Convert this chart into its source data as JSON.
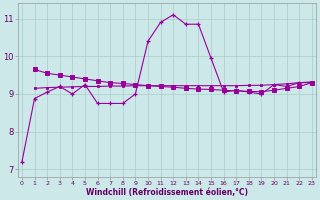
{
  "line1_x": [
    0,
    1,
    2,
    3,
    4,
    5,
    6,
    7,
    8,
    9,
    10,
    11,
    12,
    13,
    14,
    15,
    16,
    17,
    18,
    19,
    20,
    21,
    22,
    23
  ],
  "line1_y": [
    7.2,
    8.88,
    9.05,
    9.2,
    9.0,
    9.25,
    8.75,
    8.75,
    8.75,
    9.0,
    10.4,
    10.9,
    11.1,
    10.85,
    10.85,
    9.95,
    9.05,
    9.1,
    9.05,
    9.0,
    9.25,
    9.2,
    9.3,
    9.3
  ],
  "line2_x": [
    1,
    2,
    3,
    4,
    5,
    6,
    7,
    8,
    9,
    10,
    11,
    12,
    13,
    14,
    15,
    16,
    17,
    18,
    19,
    20,
    21,
    22,
    23
  ],
  "line2_y": [
    9.65,
    9.55,
    9.5,
    9.45,
    9.4,
    9.35,
    9.3,
    9.28,
    9.25,
    9.22,
    9.2,
    9.18,
    9.15,
    9.13,
    9.12,
    9.1,
    9.08,
    9.07,
    9.06,
    9.1,
    9.15,
    9.2,
    9.3
  ],
  "line3_x": [
    1,
    2,
    3,
    4,
    5,
    6,
    7,
    8,
    9,
    10,
    11,
    12,
    13,
    14,
    15,
    16,
    17,
    18,
    19,
    20,
    21,
    22,
    23
  ],
  "line3_y": [
    9.15,
    9.17,
    9.18,
    9.19,
    9.2,
    9.2,
    9.21,
    9.21,
    9.22,
    9.22,
    9.22,
    9.22,
    9.22,
    9.22,
    9.22,
    9.22,
    9.22,
    9.23,
    9.23,
    9.25,
    9.27,
    9.3,
    9.32
  ],
  "line_color": "#990099",
  "bg_color": "#cce8e8",
  "grid_color": "#aacccc",
  "xlabel": "Windchill (Refroidissement éolien,°C)",
  "ylim": [
    6.8,
    11.4
  ],
  "xlim": [
    -0.3,
    23.3
  ],
  "yticks": [
    7,
    8,
    9,
    10,
    11
  ],
  "xticks": [
    0,
    1,
    2,
    3,
    4,
    5,
    6,
    7,
    8,
    9,
    10,
    11,
    12,
    13,
    14,
    15,
    16,
    17,
    18,
    19,
    20,
    21,
    22,
    23
  ]
}
